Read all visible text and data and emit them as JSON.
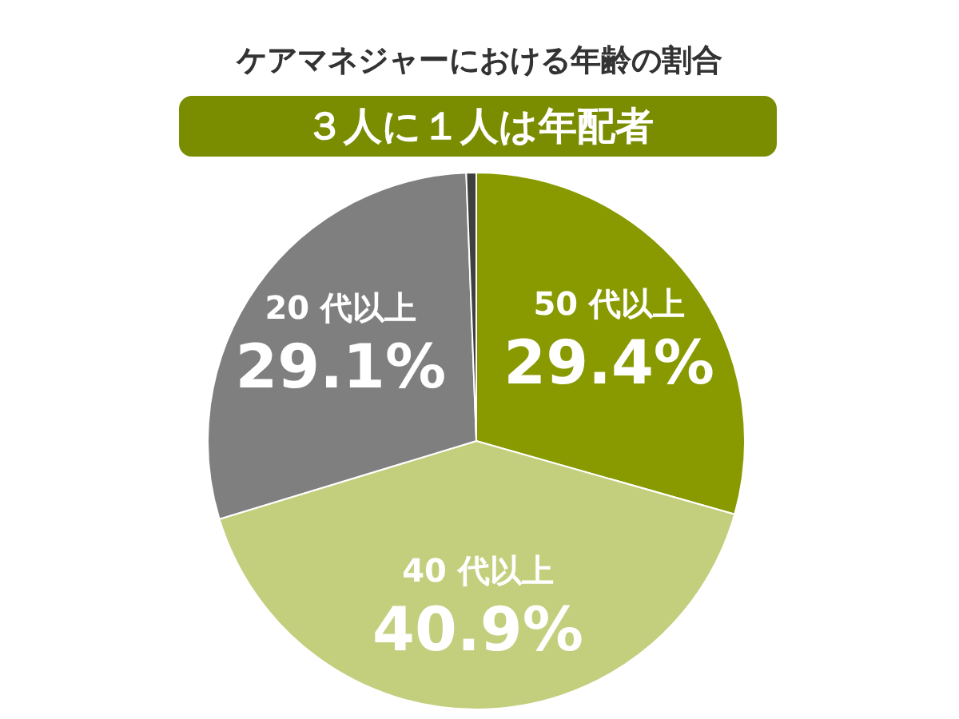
{
  "chart_data": {
    "type": "pie",
    "title": "ケアマネジャーにおける年齢の割合",
    "subtitle": "３人に１人は年配者",
    "categories": [
      "50 代以上",
      "40 代以上",
      "20 代以上",
      null
    ],
    "values": [
      29.4,
      40.9,
      29.1,
      0.6
    ],
    "colors": [
      "#889a00",
      "#c3cf7d",
      "#7f7f7f",
      "#3f3f3f"
    ],
    "value_labels": [
      "29.4%",
      "40.9%",
      "29.1%",
      null
    ]
  }
}
